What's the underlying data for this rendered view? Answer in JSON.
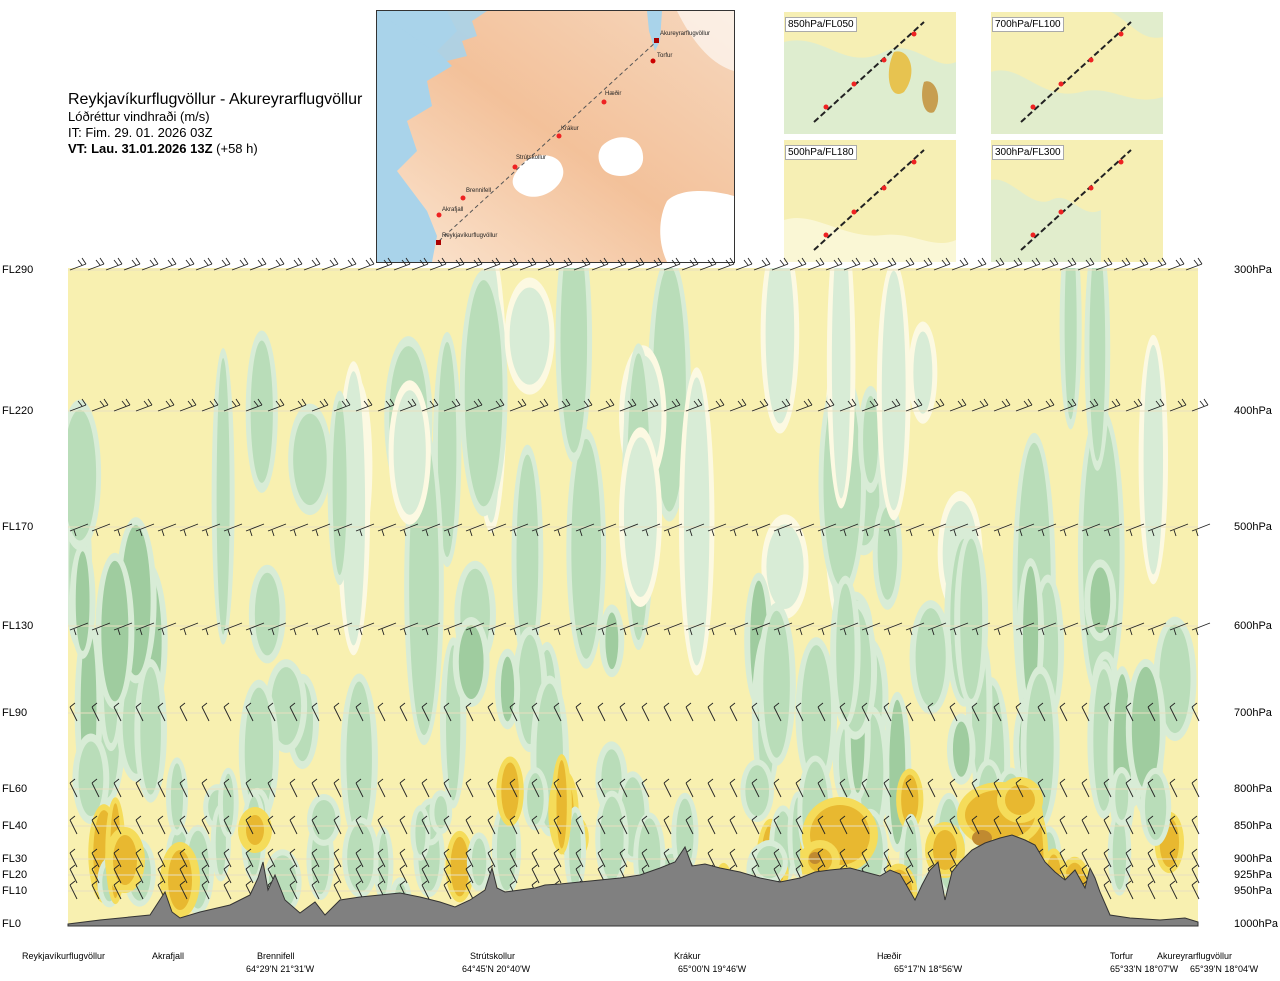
{
  "title": {
    "route": "Reykjavíkurflugvöllur - Akureyrarflugvöllur",
    "subtitle": "Lóðréttur vindhraði (m/s)",
    "it": "IT: Fim. 29. 01. 2026 03Z",
    "vt_bold": "VT: Lau. 31.01.2026 13Z",
    "vt_suffix": " (+58 h)"
  },
  "map": {
    "labels": [
      "Akureyrarflugvöllur",
      "Torfur",
      "Hæðir",
      "Krákur",
      "Strútskollur",
      "Brennifell",
      "Akrafjall",
      "Reykjavíkurflugvöllur"
    ]
  },
  "mini_maps": [
    "850hPa/FL050",
    "700hPa/FL100",
    "500hPa/FL180",
    "300hPa/FL300"
  ],
  "chart_data": {
    "type": "heatmap",
    "title": "Lóðréttur vindhraði (m/s)",
    "x_axis": "route from Reykjavíkurflugvöllur to Akureyrarflugvöllur",
    "levels": [
      {
        "fl": "FL290",
        "hpa": "300hPa"
      },
      {
        "fl": "FL220",
        "hpa": "400hPa"
      },
      {
        "fl": "FL170",
        "hpa": "500hPa"
      },
      {
        "fl": "FL130",
        "hpa": "600hPa"
      },
      {
        "fl": "FL90",
        "hpa": "700hPa"
      },
      {
        "fl": "FL60",
        "hpa": "800hPa"
      },
      {
        "fl": "FL40",
        "hpa": "850hPa"
      },
      {
        "fl": "FL30",
        "hpa": "900hPa"
      },
      {
        "fl": "FL20",
        "hpa": "925hPa"
      },
      {
        "fl": "FL10",
        "hpa": "950hPa"
      },
      {
        "fl": "FL0",
        "hpa": "1000hPa"
      }
    ],
    "waypoints": [
      {
        "name": "Reykjavíkurflugvöllur",
        "coord": ""
      },
      {
        "name": "Akrafjall",
        "coord": ""
      },
      {
        "name": "Brennifell",
        "coord": "64°29'N 21°31'W"
      },
      {
        "name": "Strútskollur",
        "coord": "64°45'N 20°40'W"
      },
      {
        "name": "Krákur",
        "coord": "65°00'N 19°46'W"
      },
      {
        "name": "Hæðir",
        "coord": "65°17'N 18°56'W"
      },
      {
        "name": "Torfur",
        "coord": "65°33'N 18°07'W"
      },
      {
        "name": "Akureyrarflugvöllur",
        "coord": "65°39'N 18°04'W"
      }
    ],
    "colors": {
      "background": "#f8f0b0",
      "weak_down": "#d8ecd6",
      "down": "#b9ddb9",
      "strong_down": "#9fcc9f",
      "weak_up": "#f5dc5a",
      "up": "#e8b830",
      "strong_up": "#c08a30",
      "terrain": "#808080"
    }
  }
}
